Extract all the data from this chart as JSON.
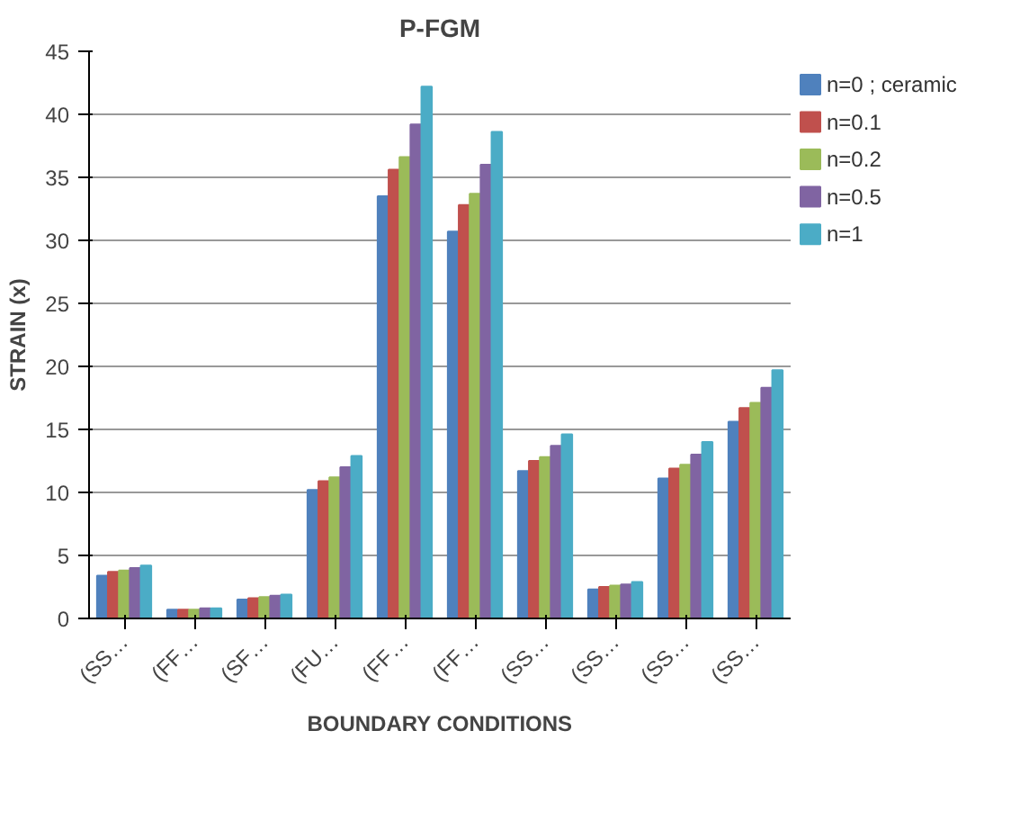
{
  "chart_data": {
    "type": "bar",
    "title": "P-FGM",
    "xlabel": "BOUNDARY CONDITIONS",
    "ylabel": "STRAIN (x)",
    "categories": [
      "(SS…",
      "(FF…",
      "(SF…",
      "(FU…",
      "(FF…",
      "(FF…",
      "(SS…",
      "(SS…",
      "(SS…",
      "(SS…"
    ],
    "series": [
      {
        "name": "n=0 ; ceramic",
        "color": "#4f81bd",
        "values": [
          3.4,
          0.7,
          1.5,
          10.2,
          33.5,
          30.7,
          11.7,
          2.3,
          11.1,
          15.6
        ]
      },
      {
        "name": "n=0.1",
        "color": "#c0504d",
        "values": [
          3.7,
          0.7,
          1.6,
          10.9,
          35.6,
          32.8,
          12.5,
          2.5,
          11.9,
          16.7
        ]
      },
      {
        "name": "n=0.2",
        "color": "#9bbb59",
        "values": [
          3.8,
          0.7,
          1.7,
          11.2,
          36.6,
          33.7,
          12.8,
          2.6,
          12.2,
          17.1
        ]
      },
      {
        "name": "n=0.5",
        "color": "#8064a2",
        "values": [
          4.0,
          0.8,
          1.8,
          12.0,
          39.2,
          36.0,
          13.7,
          2.7,
          13.0,
          18.3
        ]
      },
      {
        "name": "n=1",
        "color": "#4bacc6",
        "values": [
          4.2,
          0.8,
          1.9,
          12.9,
          42.2,
          38.6,
          14.6,
          2.9,
          14.0,
          19.7
        ]
      }
    ],
    "ylim": [
      0,
      45
    ],
    "yticks": [
      0,
      5,
      10,
      15,
      20,
      25,
      30,
      35,
      40,
      45
    ],
    "grid": "y",
    "legend": "top right"
  }
}
